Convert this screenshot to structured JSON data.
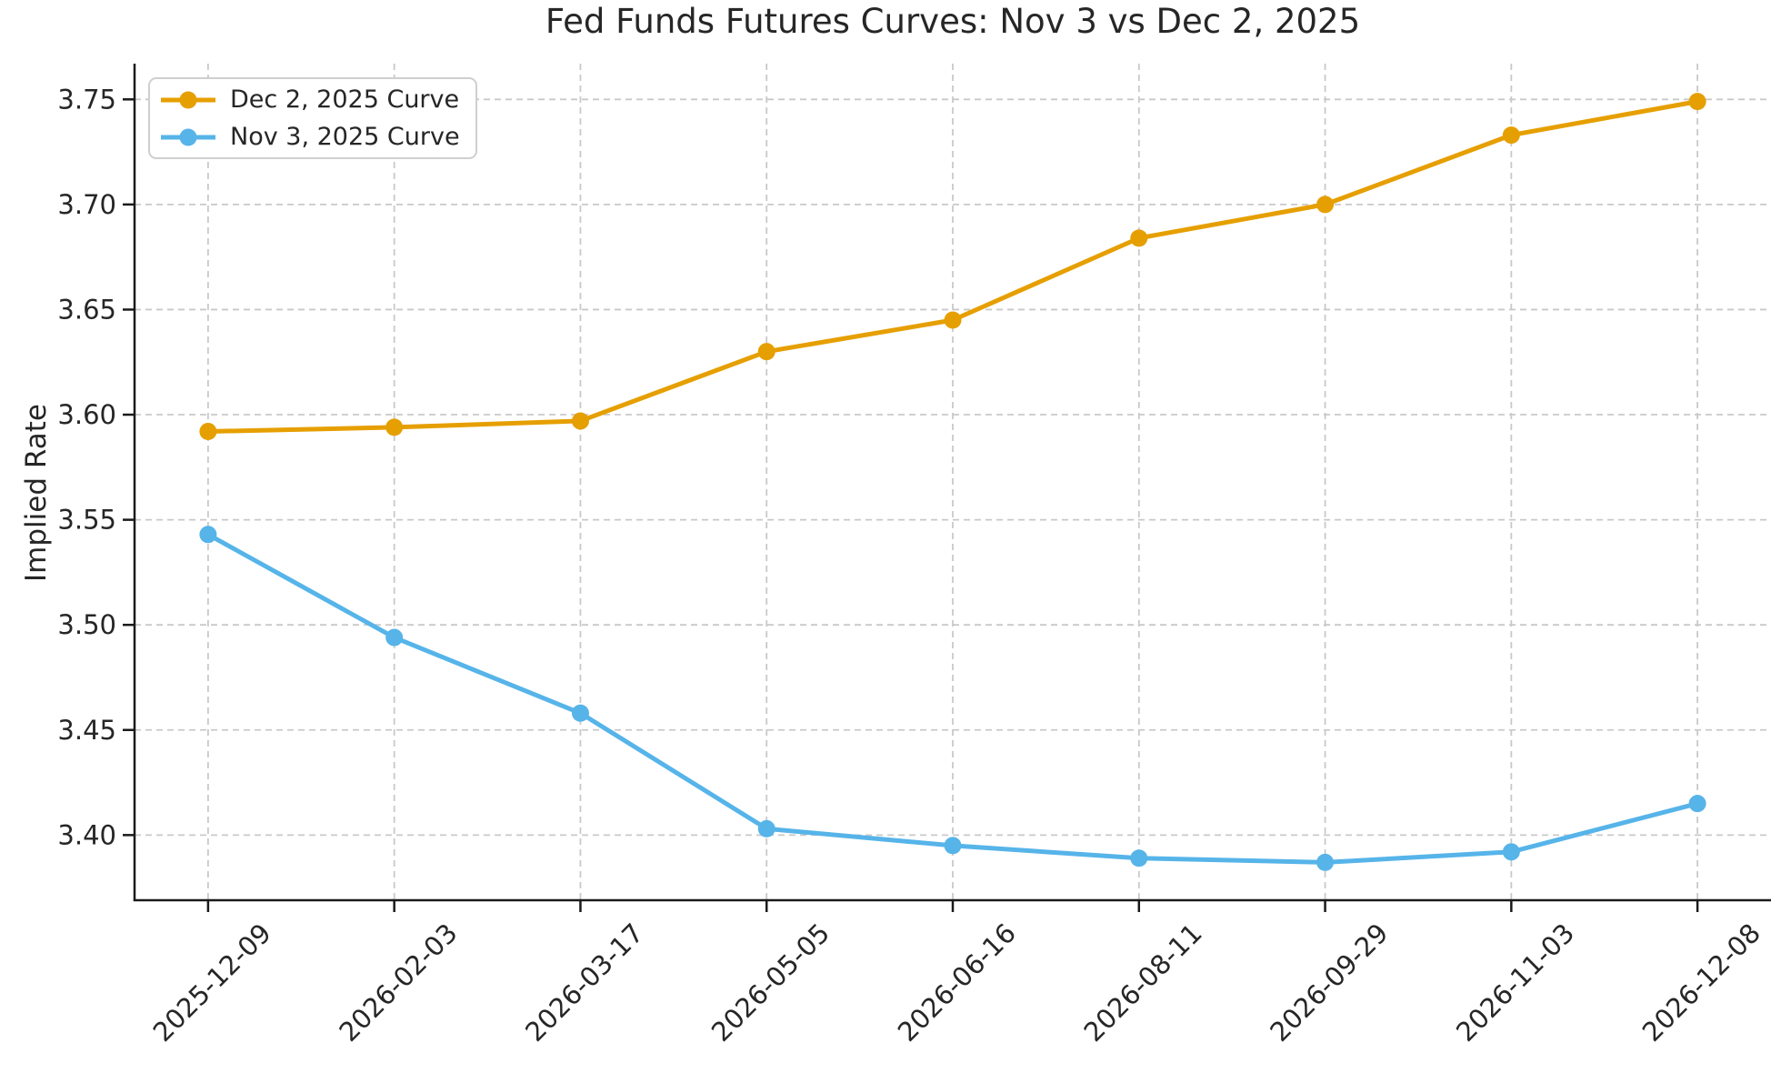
{
  "chart_data": {
    "type": "line",
    "title": "Fed Funds Futures Curves: Nov 3 vs Dec 2, 2025",
    "xlabel": "",
    "ylabel": "Implied Rate",
    "categories": [
      "2025-12-09",
      "2026-02-03",
      "2026-03-17",
      "2026-05-05",
      "2026-06-16",
      "2026-08-11",
      "2026-09-29",
      "2026-11-03",
      "2026-12-08"
    ],
    "series": [
      {
        "name": "Dec 2, 2025 Curve",
        "color": "#E69F00",
        "marker": "circle",
        "values": [
          3.592,
          3.594,
          3.597,
          3.63,
          3.645,
          3.684,
          3.7,
          3.733,
          3.749
        ]
      },
      {
        "name": "Nov 3, 2025 Curve",
        "color": "#56B4E9",
        "marker": "circle",
        "values": [
          3.543,
          3.494,
          3.458,
          3.403,
          3.395,
          3.389,
          3.387,
          3.392,
          3.415
        ]
      }
    ],
    "yticks": [
      3.4,
      3.45,
      3.5,
      3.55,
      3.6,
      3.65,
      3.7,
      3.75
    ],
    "ytick_labels": [
      "3.40",
      "3.45",
      "3.50",
      "3.55",
      "3.60",
      "3.65",
      "3.70",
      "3.75"
    ],
    "ylim": [
      3.369,
      3.767
    ],
    "grid": true,
    "grid_style": "dashed",
    "legend_position": "upper left",
    "x_tick_rotation_deg": 45
  },
  "style": {
    "background": "#ffffff",
    "grid_color": "#c9c9c9",
    "spine_color": "#1a1a1a",
    "tick_color": "#1a1a1a",
    "text_color": "#262626",
    "title_color": "#262626",
    "legend_border_color": "#cfcfcf"
  }
}
